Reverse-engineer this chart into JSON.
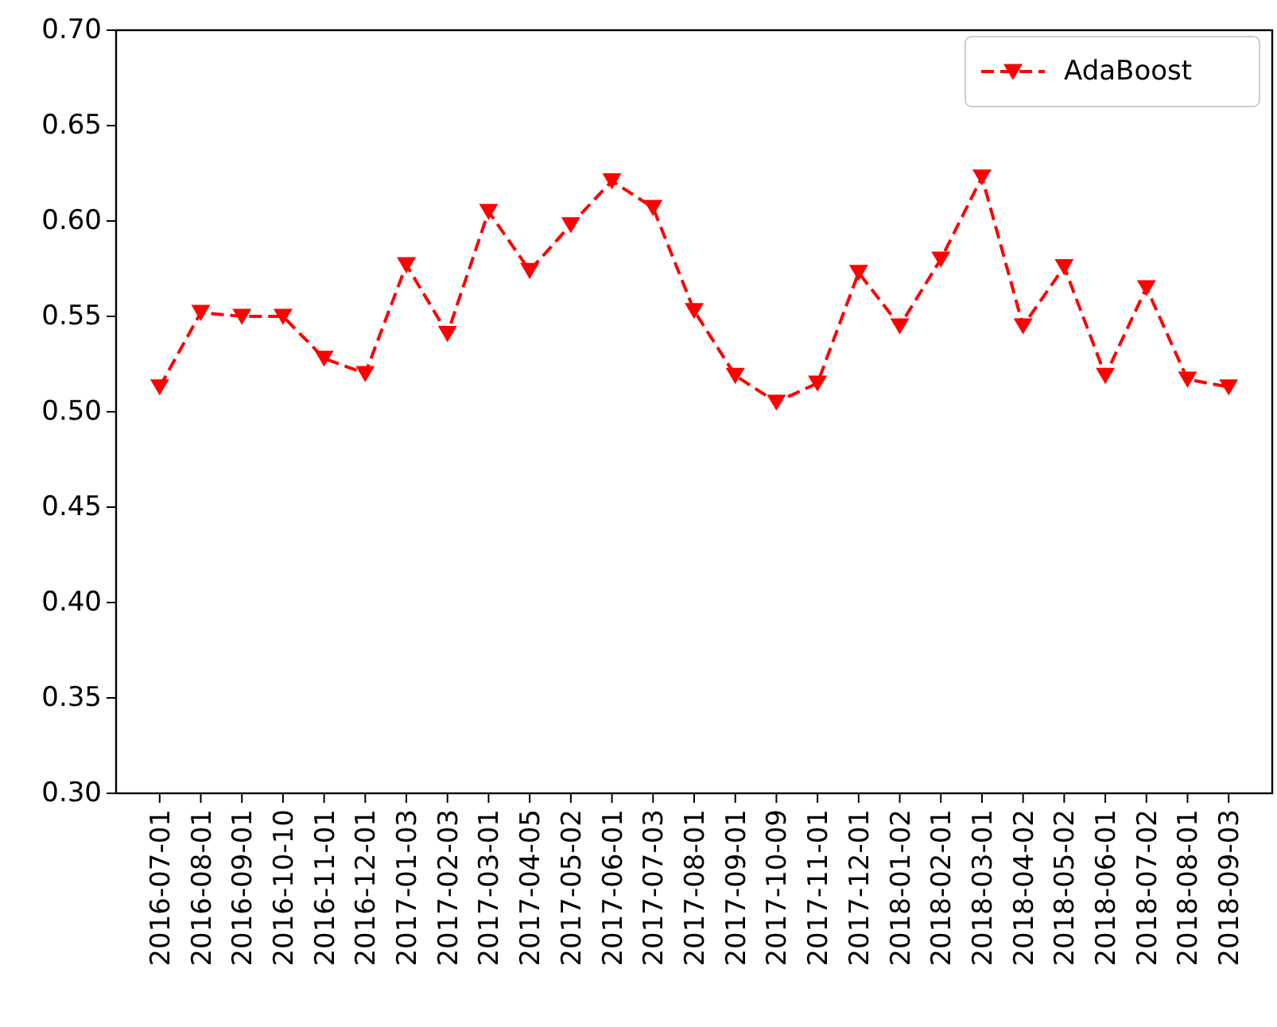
{
  "chart_data": {
    "type": "line",
    "categories": [
      "2016-07-01",
      "2016-08-01",
      "2016-09-01",
      "2016-10-10",
      "2016-11-01",
      "2016-12-01",
      "2017-01-03",
      "2017-02-03",
      "2017-03-01",
      "2017-04-05",
      "2017-05-02",
      "2017-06-01",
      "2017-07-03",
      "2017-08-01",
      "2017-09-01",
      "2017-10-09",
      "2017-11-01",
      "2017-12-01",
      "2018-01-02",
      "2018-02-01",
      "2018-03-01",
      "2018-04-02",
      "2018-05-02",
      "2018-06-01",
      "2018-07-02",
      "2018-08-01",
      "2018-09-03"
    ],
    "series": [
      {
        "name": "AdaBoost",
        "color": "#ff0000",
        "values": [
          0.513,
          0.552,
          0.55,
          0.55,
          0.528,
          0.52,
          0.577,
          0.541,
          0.605,
          0.574,
          0.598,
          0.621,
          0.607,
          0.553,
          0.519,
          0.505,
          0.515,
          0.573,
          0.545,
          0.58,
          0.623,
          0.545,
          0.576,
          0.519,
          0.565,
          0.517,
          0.513
        ]
      }
    ],
    "ylim": [
      0.3,
      0.7
    ],
    "yticks": [
      {
        "value": 0.3,
        "label": "0.30"
      },
      {
        "value": 0.35,
        "label": "0.35"
      },
      {
        "value": 0.4,
        "label": "0.40"
      },
      {
        "value": 0.45,
        "label": "0.45"
      },
      {
        "value": 0.5,
        "label": "0.50"
      },
      {
        "value": 0.55,
        "label": "0.55"
      },
      {
        "value": 0.6,
        "label": "0.60"
      },
      {
        "value": 0.65,
        "label": "0.65"
      },
      {
        "value": 0.7,
        "label": "0.70"
      }
    ],
    "marker": "triangle",
    "line_style": "dashed",
    "legend": "top right",
    "grid": false
  }
}
